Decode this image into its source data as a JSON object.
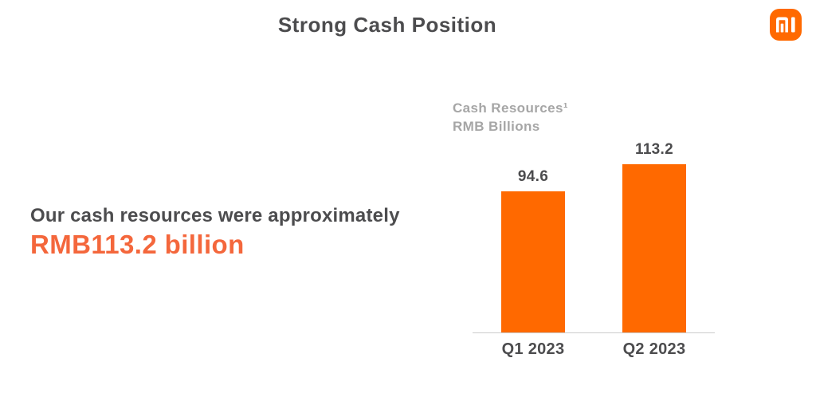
{
  "slide": {
    "title": "Strong Cash Position",
    "background_color": "#FFFFFF"
  },
  "logo": {
    "name": "xiaomi-mi-logo",
    "color": "#FF6900",
    "glyph_color": "#FFFFFF"
  },
  "highlight": {
    "lead": "Our cash resources were approximately",
    "value": "RMB113.2 billion",
    "lead_color": "#4C4C4E",
    "value_color": "#F4673C"
  },
  "chart_data": {
    "type": "bar",
    "title": "Cash Resources¹",
    "subtitle": "RMB Billions",
    "categories": [
      "Q1 2023",
      "Q2 2023"
    ],
    "values": [
      94.6,
      113.2
    ],
    "value_labels": [
      "94.6",
      "113.2"
    ],
    "ylim": [
      0,
      120
    ],
    "bar_color": "#FF6900",
    "value_label_color": "#4C4C4E",
    "category_label_color": "#4C4C4E",
    "axis_line_color": "#CCCCCC",
    "heading_color": "#A6A6A6",
    "grid": false,
    "legend_position": "none",
    "data_labels": "above-bars",
    "footnote_marker": "1"
  }
}
